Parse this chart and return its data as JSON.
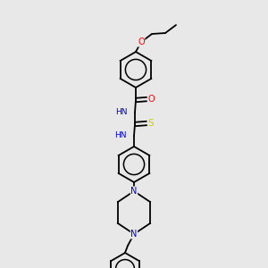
{
  "background_color": "#e8e8e8",
  "bond_color": "#000000",
  "atom_colors": {
    "O": "#ff0000",
    "N": "#0000cc",
    "S": "#cccc00",
    "C": "#000000",
    "H": "#000000"
  },
  "figsize": [
    3.0,
    3.0
  ],
  "dpi": 100,
  "lw": 1.3,
  "ring_r": 20,
  "benzyl_r": 18
}
